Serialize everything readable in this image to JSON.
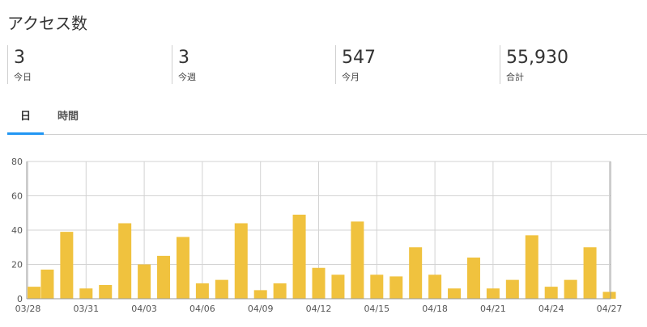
{
  "page": {
    "title": "アクセス数"
  },
  "stats": [
    {
      "value": "3",
      "label": "今日"
    },
    {
      "value": "3",
      "label": "今週"
    },
    {
      "value": "547",
      "label": "今月"
    },
    {
      "value": "55,930",
      "label": "合計"
    }
  ],
  "tabs": [
    {
      "label": "日",
      "active": true
    },
    {
      "label": "時間",
      "active": false
    }
  ],
  "colors": {
    "bar": "#f0c23e",
    "tab_accent": "#2196f3",
    "grid": "#d3d3d3"
  },
  "chart_data": {
    "type": "bar",
    "categories": [
      "03/28",
      "03/29",
      "03/30",
      "03/31",
      "04/01",
      "04/02",
      "04/03",
      "04/04",
      "04/05",
      "04/06",
      "04/07",
      "04/08",
      "04/09",
      "04/10",
      "04/11",
      "04/12",
      "04/13",
      "04/14",
      "04/15",
      "04/16",
      "04/17",
      "04/18",
      "04/19",
      "04/20",
      "04/21",
      "04/22",
      "04/23",
      "04/24",
      "04/25",
      "04/26",
      "04/27"
    ],
    "values": [
      7,
      17,
      39,
      6,
      8,
      44,
      20,
      25,
      36,
      9,
      11,
      44,
      5,
      9,
      49,
      18,
      14,
      45,
      14,
      13,
      30,
      14,
      6,
      24,
      6,
      11,
      37,
      7,
      11,
      30,
      4
    ],
    "tick_labels": [
      "03/28",
      "03/31",
      "04/03",
      "04/06",
      "04/09",
      "04/12",
      "04/15",
      "04/18",
      "04/21",
      "04/24",
      "04/27"
    ],
    "tick_indices": [
      0,
      3,
      6,
      9,
      12,
      15,
      18,
      21,
      24,
      27,
      30
    ],
    "ylim": [
      0,
      80
    ],
    "yticks": [
      0,
      20,
      40,
      60,
      80
    ],
    "grid": true
  }
}
